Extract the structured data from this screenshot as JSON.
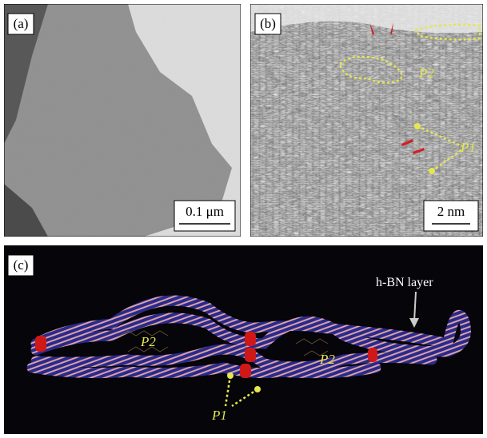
{
  "panels": [
    {
      "label": "(a)",
      "scale_bar": "0.1 μm"
    },
    {
      "label": "(b)",
      "annotations": [
        "P2",
        "P1"
      ],
      "scale_bar": "2 nm"
    },
    {
      "label": "(c)",
      "annotations": [
        "h-BN layer",
        "P2",
        "P2",
        "P1"
      ]
    }
  ]
}
